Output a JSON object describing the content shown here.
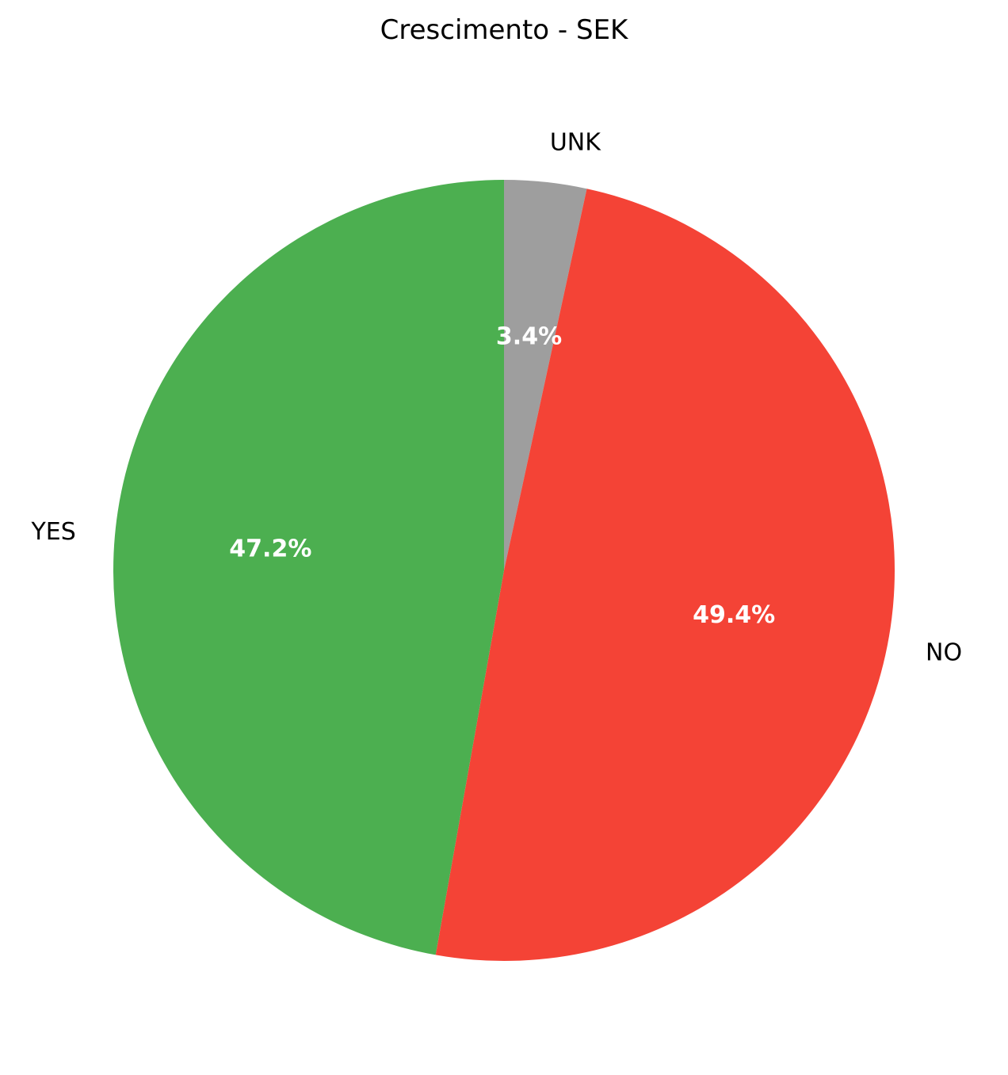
{
  "chart_data": {
    "type": "pie",
    "title": "Crescimento - SEK",
    "start_angle_deg": 90,
    "direction": "clockwise",
    "slices": [
      {
        "label": "UNK",
        "value": 3.4,
        "pct_label": "3.4%",
        "color": "#9e9e9e"
      },
      {
        "label": "NO",
        "value": 49.4,
        "pct_label": "49.4%",
        "color": "#f44336"
      },
      {
        "label": "YES",
        "value": 47.2,
        "pct_label": "47.2%",
        "color": "#4caf50"
      }
    ]
  }
}
